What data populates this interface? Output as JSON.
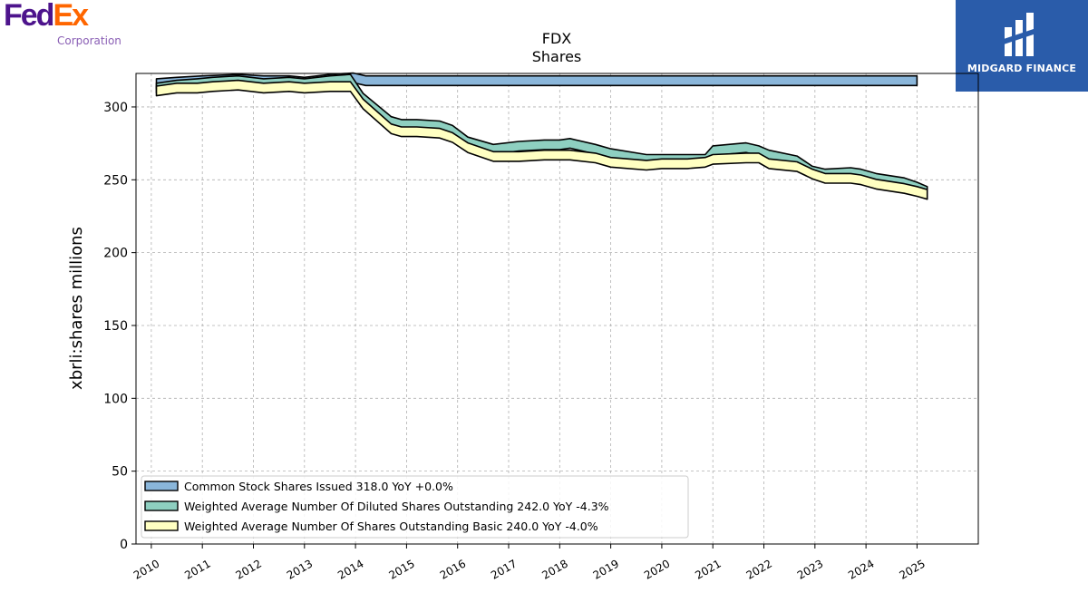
{
  "logos": {
    "company_fed": "Fed",
    "company_ex": "Ex",
    "company_sub": "Corporation",
    "publisher": "MIDGARD FINANCE"
  },
  "chart_data": {
    "type": "area",
    "title": "FDX",
    "subtitle": "Shares",
    "ylabel": "xbrli:shares millions",
    "xlabel": "",
    "ylim": [
      0,
      323
    ],
    "xlim": [
      2009.7,
      2026.2
    ],
    "yticks": [
      0,
      50,
      100,
      150,
      200,
      250,
      300
    ],
    "xticks": [
      2010,
      2011,
      2012,
      2013,
      2014,
      2015,
      2016,
      2017,
      2018,
      2019,
      2020,
      2021,
      2022,
      2023,
      2024,
      2025
    ],
    "grid": true,
    "legend_position": "lower-left",
    "series": [
      {
        "name": "Common Stock Shares Issued",
        "legend": "Common Stock Shares Issued  318.0 YoY +0.0%",
        "color": "#8ab6da",
        "x": [
          2010.1,
          2010.5,
          2011.0,
          2011.7,
          2012.2,
          2012.7,
          2013.0,
          2013.5,
          2013.95,
          2014.2,
          2025.0
        ],
        "y": [
          316,
          317,
          318,
          319,
          318,
          318,
          317,
          319,
          320,
          318,
          318
        ]
      },
      {
        "name": "Weighted Average Number Of Diluted Shares Outstanding",
        "legend": "Weighted Average Number Of Diluted Shares Outstanding  242.0 YoY -4.3%",
        "color": "#8ecfc0",
        "x": [
          2010.1,
          2010.5,
          2010.9,
          2011.2,
          2011.7,
          2012.2,
          2012.7,
          2013.0,
          2013.5,
          2013.9,
          2014.15,
          2014.7,
          2014.9,
          2015.2,
          2015.65,
          2015.9,
          2016.2,
          2016.7,
          2017.2,
          2017.7,
          2018.0,
          2018.2,
          2018.7,
          2019.0,
          2019.7,
          2020.0,
          2020.5,
          2020.85,
          2021.0,
          2021.65,
          2021.9,
          2022.1,
          2022.65,
          2022.95,
          2023.2,
          2023.7,
          2023.9,
          2024.2,
          2024.75,
          2025.0,
          2025.2
        ],
        "y": [
          313,
          315,
          316,
          317,
          318,
          316,
          317,
          316,
          318,
          319,
          306,
          290,
          288,
          288,
          287,
          284,
          276,
          271,
          273,
          274,
          274,
          275,
          271,
          268,
          264,
          264,
          264,
          264,
          270,
          272,
          270,
          267,
          263,
          256,
          254,
          255,
          254,
          251,
          248,
          245,
          242
        ]
      },
      {
        "name": "Weighted Average Number Of Shares Outstanding Basic",
        "legend": "Weighted Average Number Of Shares Outstanding Basic  240.0 YoY -4.0%",
        "color": "#ffffc2",
        "x": [
          2010.1,
          2010.5,
          2010.9,
          2011.2,
          2011.7,
          2012.2,
          2012.7,
          2013.0,
          2013.5,
          2013.9,
          2014.15,
          2014.7,
          2014.9,
          2015.2,
          2015.65,
          2015.9,
          2016.2,
          2016.7,
          2017.2,
          2017.7,
          2018.0,
          2018.2,
          2018.7,
          2019.0,
          2019.7,
          2020.0,
          2020.5,
          2020.85,
          2021.0,
          2021.65,
          2021.9,
          2022.1,
          2022.65,
          2022.95,
          2023.2,
          2023.7,
          2023.9,
          2024.2,
          2024.75,
          2025.0,
          2025.2
        ],
        "y": [
          311,
          313,
          313,
          314,
          315,
          313,
          314,
          313,
          314,
          314,
          302,
          285,
          283,
          283,
          282,
          279,
          272,
          266,
          266,
          267,
          267,
          267,
          265,
          262,
          260,
          261,
          261,
          262,
          264,
          265,
          265,
          261,
          259,
          254,
          251,
          251,
          250,
          247,
          244,
          242,
          240
        ]
      }
    ]
  }
}
